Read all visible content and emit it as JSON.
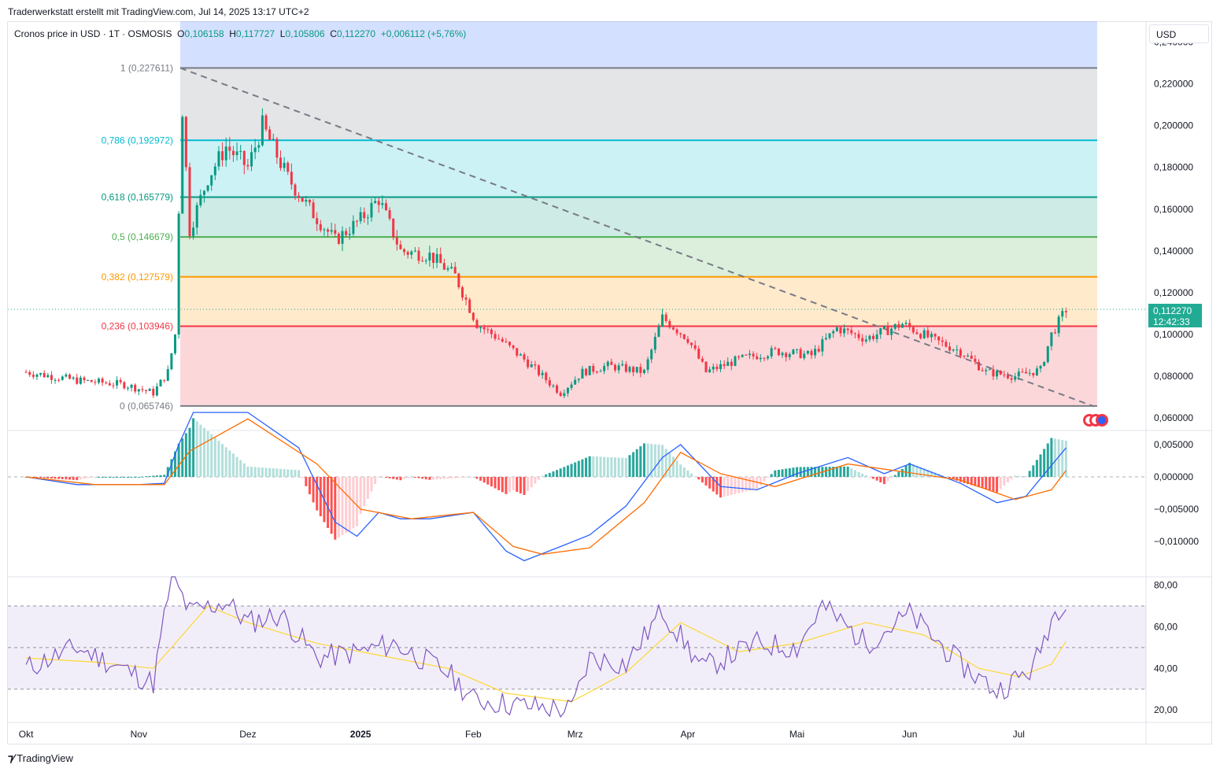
{
  "header": {
    "credit": "Traderwerkstatt erstellt mit TradingView.com, Jul 14, 2025 13:17 UTC+2"
  },
  "legend": {
    "symbol": "Cronos price in USD · 1T · OSMOSIS",
    "o_label": "O",
    "o": "0,106158",
    "h_label": "H",
    "h": "0,117727",
    "l_label": "L",
    "l": "0,105806",
    "c_label": "C",
    "c": "0,112270",
    "change": "+0,006112 (+5,76%)"
  },
  "currency": "USD",
  "last_price": {
    "price": "0,112270",
    "countdown": "12:42:33"
  },
  "footer": {
    "brand": "TradingView"
  },
  "colors": {
    "up": "#089981",
    "down": "#f23645",
    "macd": "#2962ff",
    "signal": "#ff6d00",
    "rsi": "#7e57c2",
    "rsi_ma": "#fdd835"
  },
  "chart_data": [
    {
      "type": "candlestick",
      "title": "Cronos price in USD · 1T · OSMOSIS",
      "y_ticks": [
        "0,240000",
        "0,220000",
        "0,200000",
        "0,180000",
        "0,160000",
        "0,140000",
        "0,120000",
        "0,100000",
        "0,080000",
        "0,060000"
      ],
      "ylim": [
        0.054,
        0.25
      ],
      "x_ticks": [
        "Okt",
        "Nov",
        "Dez",
        "2025",
        "Feb",
        "Mrz",
        "Apr",
        "Mai",
        "Jun",
        "Jul"
      ],
      "fib_levels": [
        {
          "label": "1 (0,227611)",
          "value": 0.227611,
          "color": "#787b86"
        },
        {
          "label": "0,786 (0,192972)",
          "value": 0.192972,
          "color": "#00bcd4"
        },
        {
          "label": "0,618 (0,165779)",
          "value": 0.165779,
          "color": "#089981"
        },
        {
          "label": "0,5 (0,146679)",
          "value": 0.146679,
          "color": "#4caf50"
        },
        {
          "label": "0,382 (0,127579)",
          "value": 0.127579,
          "color": "#ff9800"
        },
        {
          "label": "0,236 (0,103946)",
          "value": 0.103946,
          "color": "#f23645"
        },
        {
          "label": "0 (0,065746)",
          "value": 0.065746,
          "color": "#787b86"
        }
      ],
      "close_path": [
        [
          "2024-10-01",
          0.082
        ],
        [
          "2024-10-15",
          0.078
        ],
        [
          "2024-10-28",
          0.076
        ],
        [
          "2024-11-05",
          0.072
        ],
        [
          "2024-11-09",
          0.082
        ],
        [
          "2024-11-11",
          0.1
        ],
        [
          "2024-11-12",
          0.16
        ],
        [
          "2024-11-13",
          0.208
        ],
        [
          "2024-11-15",
          0.15
        ],
        [
          "2024-11-20",
          0.175
        ],
        [
          "2024-11-25",
          0.19
        ],
        [
          "2024-12-01",
          0.18
        ],
        [
          "2024-12-05",
          0.2
        ],
        [
          "2024-12-12",
          0.175
        ],
        [
          "2024-12-18",
          0.16
        ],
        [
          "2024-12-25",
          0.145
        ],
        [
          "2025-01-01",
          0.155
        ],
        [
          "2025-01-06",
          0.165
        ],
        [
          "2025-01-12",
          0.14
        ],
        [
          "2025-01-20",
          0.138
        ],
        [
          "2025-01-27",
          0.128
        ],
        [
          "2025-02-02",
          0.105
        ],
        [
          "2025-02-08",
          0.098
        ],
        [
          "2025-02-15",
          0.088
        ],
        [
          "2025-02-25",
          0.072
        ],
        [
          "2025-03-03",
          0.082
        ],
        [
          "2025-03-10",
          0.085
        ],
        [
          "2025-03-20",
          0.082
        ],
        [
          "2025-03-25",
          0.108
        ],
        [
          "2025-04-01",
          0.098
        ],
        [
          "2025-04-06",
          0.082
        ],
        [
          "2025-04-15",
          0.088
        ],
        [
          "2025-04-25",
          0.092
        ],
        [
          "2025-05-05",
          0.09
        ],
        [
          "2025-05-12",
          0.103
        ],
        [
          "2025-05-20",
          0.098
        ],
        [
          "2025-05-30",
          0.105
        ],
        [
          "2025-06-08",
          0.097
        ],
        [
          "2025-06-15",
          0.092
        ],
        [
          "2025-06-22",
          0.082
        ],
        [
          "2025-06-30",
          0.08
        ],
        [
          "2025-07-07",
          0.083
        ],
        [
          "2025-07-10",
          0.1
        ],
        [
          "2025-07-14",
          0.112
        ]
      ]
    },
    {
      "type": "macd",
      "y_ticks": [
        "0,005000",
        "0,000000",
        "−0,005000",
        "−0,010000"
      ],
      "ylim": [
        -0.0155,
        0.0072
      ],
      "macd": [
        [
          "2024-10-01",
          0.0
        ],
        [
          "2024-10-15",
          -0.0012
        ],
        [
          "2024-11-01",
          -0.0012
        ],
        [
          "2024-11-08",
          -0.001
        ],
        [
          "2024-11-12",
          0.005
        ],
        [
          "2024-11-16",
          0.01
        ],
        [
          "2024-12-01",
          0.01
        ],
        [
          "2024-12-15",
          0.0045
        ],
        [
          "2024-12-25",
          -0.007
        ],
        [
          "2024-12-31",
          -0.0092
        ],
        [
          "2025-01-06",
          -0.0055
        ],
        [
          "2025-01-12",
          -0.0065
        ],
        [
          "2025-01-20",
          -0.0065
        ],
        [
          "2025-02-01",
          -0.0055
        ],
        [
          "2025-02-10",
          -0.0115
        ],
        [
          "2025-02-15",
          -0.013
        ],
        [
          "2025-02-25",
          -0.0108
        ],
        [
          "2025-03-05",
          -0.009
        ],
        [
          "2025-03-15",
          -0.0045
        ],
        [
          "2025-03-25",
          0.003
        ],
        [
          "2025-03-30",
          0.005
        ],
        [
          "2025-04-10",
          -0.0015
        ],
        [
          "2025-04-20",
          -0.002
        ],
        [
          "2025-05-01",
          0.0005
        ],
        [
          "2025-05-15",
          0.003
        ],
        [
          "2025-05-25",
          0.0005
        ],
        [
          "2025-06-01",
          0.002
        ],
        [
          "2025-06-15",
          -0.001
        ],
        [
          "2025-06-25",
          -0.004
        ],
        [
          "2025-07-03",
          -0.003
        ],
        [
          "2025-07-14",
          0.0045
        ]
      ],
      "signal": [
        [
          "2024-10-01",
          0.0
        ],
        [
          "2024-10-20",
          -0.0012
        ],
        [
          "2024-11-08",
          -0.0012
        ],
        [
          "2024-11-15",
          0.004
        ],
        [
          "2024-12-01",
          0.009
        ],
        [
          "2024-12-20",
          0.002
        ],
        [
          "2025-01-01",
          -0.005
        ],
        [
          "2025-01-15",
          -0.0065
        ],
        [
          "2025-02-01",
          -0.0055
        ],
        [
          "2025-02-12",
          -0.0108
        ],
        [
          "2025-02-20",
          -0.012
        ],
        [
          "2025-03-05",
          -0.011
        ],
        [
          "2025-03-20",
          -0.004
        ],
        [
          "2025-03-30",
          0.0038
        ],
        [
          "2025-04-10",
          0.0005
        ],
        [
          "2025-04-25",
          -0.0015
        ],
        [
          "2025-05-15",
          0.002
        ],
        [
          "2025-05-30",
          0.0008
        ],
        [
          "2025-06-15",
          -0.0005
        ],
        [
          "2025-06-30",
          -0.0035
        ],
        [
          "2025-07-10",
          -0.002
        ],
        [
          "2025-07-14",
          0.001
        ]
      ],
      "histogram_range": [
        -0.0055,
        0.011
      ]
    },
    {
      "type": "rsi",
      "y_ticks": [
        "80,00",
        "60,00",
        "40,00",
        "20,00"
      ],
      "ylim": [
        14,
        84
      ],
      "bands": [
        70,
        50,
        30
      ],
      "rsi": [
        [
          "2024-10-01",
          40
        ],
        [
          "2024-10-15",
          50
        ],
        [
          "2024-10-25",
          42
        ],
        [
          "2024-11-05",
          33
        ],
        [
          "2024-11-10",
          85
        ],
        [
          "2024-11-15",
          67
        ],
        [
          "2024-11-25",
          72
        ],
        [
          "2024-12-01",
          62
        ],
        [
          "2024-12-10",
          66
        ],
        [
          "2024-12-20",
          45
        ],
        [
          "2025-01-01",
          48
        ],
        [
          "2025-01-10",
          52
        ],
        [
          "2025-01-25",
          38
        ],
        [
          "2025-02-01",
          25
        ],
        [
          "2025-02-15",
          22
        ],
        [
          "2025-02-28",
          20
        ],
        [
          "2025-03-05",
          45
        ],
        [
          "2025-03-15",
          42
        ],
        [
          "2025-03-25",
          68
        ],
        [
          "2025-04-05",
          40
        ],
        [
          "2025-04-20",
          52
        ],
        [
          "2025-05-01",
          50
        ],
        [
          "2025-05-08",
          70
        ],
        [
          "2025-05-20",
          52
        ],
        [
          "2025-06-01",
          66
        ],
        [
          "2025-06-15",
          42
        ],
        [
          "2025-06-25",
          29
        ],
        [
          "2025-07-05",
          40
        ],
        [
          "2025-07-10",
          64
        ],
        [
          "2025-07-14",
          74
        ]
      ],
      "rsi_ma": [
        [
          "2024-10-01",
          45
        ],
        [
          "2024-10-20",
          43
        ],
        [
          "2024-11-05",
          40
        ],
        [
          "2024-11-20",
          70
        ],
        [
          "2024-12-01",
          62
        ],
        [
          "2024-12-20",
          52
        ],
        [
          "2025-01-10",
          45
        ],
        [
          "2025-01-25",
          40
        ],
        [
          "2025-02-10",
          28
        ],
        [
          "2025-02-28",
          24
        ],
        [
          "2025-03-15",
          38
        ],
        [
          "2025-03-30",
          62
        ],
        [
          "2025-04-15",
          48
        ],
        [
          "2025-05-01",
          52
        ],
        [
          "2025-05-20",
          62
        ],
        [
          "2025-06-05",
          56
        ],
        [
          "2025-06-20",
          40
        ],
        [
          "2025-07-01",
          36
        ],
        [
          "2025-07-10",
          42
        ],
        [
          "2025-07-14",
          53
        ]
      ]
    }
  ]
}
